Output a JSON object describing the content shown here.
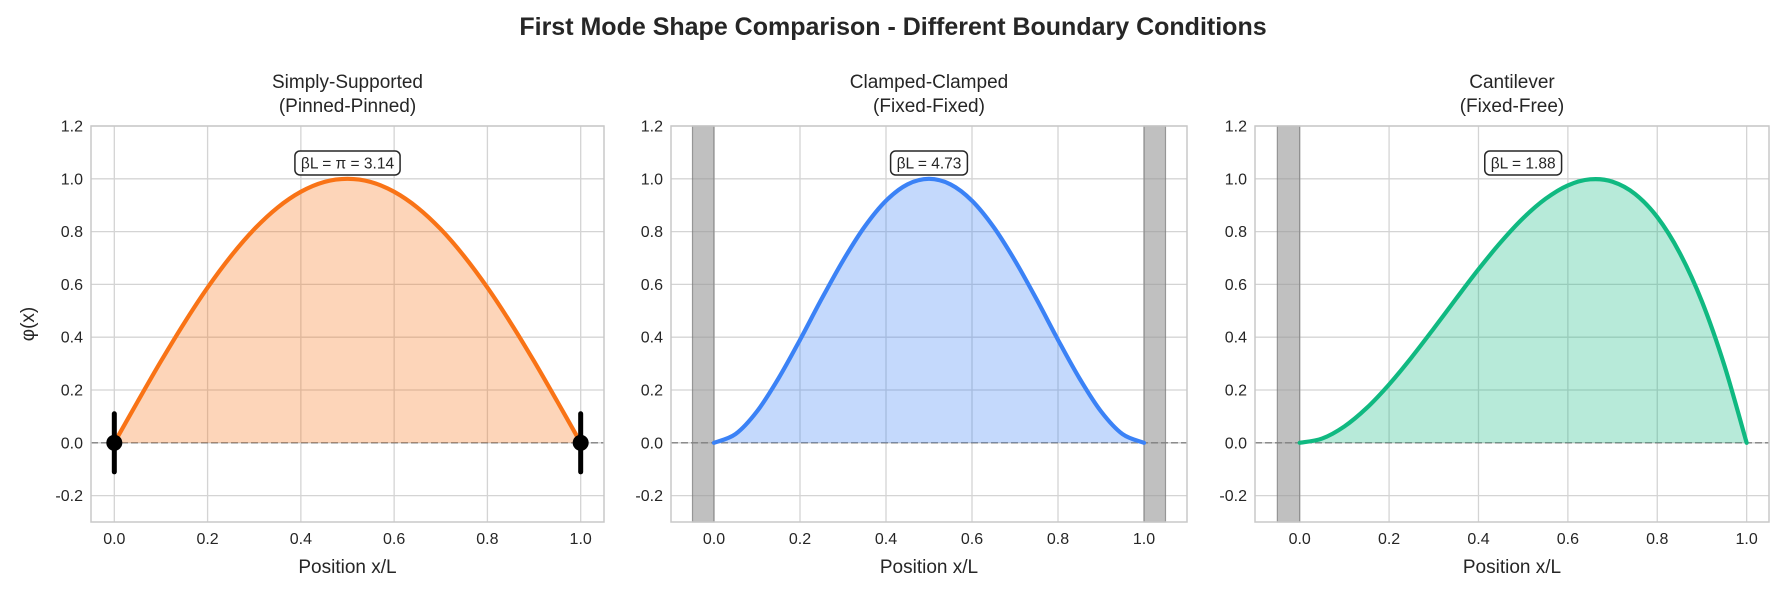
{
  "chart_data": {
    "title": "First Mode Shape Comparison - Different Boundary Conditions",
    "panels": [
      {
        "type": "area",
        "title_lines": [
          "Simply-Supported",
          "(Pinned-Pinned)"
        ],
        "xlabel": "Position x/L",
        "ylabel": "φ(x)",
        "xlim": [
          -0.05,
          1.05
        ],
        "ylim": [
          -0.3,
          1.2
        ],
        "xticks": [
          "0.0",
          "0.2",
          "0.4",
          "0.6",
          "0.8",
          "1.0"
        ],
        "yticks": [
          "-0.2",
          "0.0",
          "0.2",
          "0.4",
          "0.6",
          "0.8",
          "1.0",
          "1.2"
        ],
        "grid": true,
        "color": "#f97316",
        "annotation": "βL = π = 3.14",
        "supports": "pinned",
        "walls": [],
        "x": [
          0,
          0.05,
          0.1,
          0.15,
          0.2,
          0.25,
          0.3,
          0.35,
          0.4,
          0.45,
          0.5,
          0.55,
          0.6,
          0.65,
          0.7,
          0.75,
          0.8,
          0.85,
          0.9,
          0.95,
          1.0
        ],
        "y": [
          0,
          0.156,
          0.309,
          0.454,
          0.588,
          0.707,
          0.809,
          0.891,
          0.951,
          0.988,
          1.0,
          0.988,
          0.951,
          0.891,
          0.809,
          0.707,
          0.588,
          0.454,
          0.309,
          0.156,
          0
        ]
      },
      {
        "type": "area",
        "title_lines": [
          "Clamped-Clamped",
          "(Fixed-Fixed)"
        ],
        "xlabel": "Position x/L",
        "ylabel": "",
        "xlim": [
          -0.1,
          1.1
        ],
        "ylim": [
          -0.3,
          1.2
        ],
        "xticks": [
          "0.0",
          "0.2",
          "0.4",
          "0.6",
          "0.8",
          "1.0"
        ],
        "yticks": [
          "-0.2",
          "0.0",
          "0.2",
          "0.4",
          "0.6",
          "0.8",
          "1.0",
          "1.2"
        ],
        "grid": true,
        "color": "#3b82f6",
        "annotation": "βL = 4.73",
        "supports": "fixed",
        "walls": [
          [
            -0.05,
            0
          ],
          [
            1.0,
            1.05
          ]
        ],
        "x": [
          0,
          0.05,
          0.1,
          0.15,
          0.2,
          0.25,
          0.3,
          0.35,
          0.4,
          0.45,
          0.5,
          0.55,
          0.6,
          0.65,
          0.7,
          0.75,
          0.8,
          0.85,
          0.9,
          0.95,
          1.0
        ],
        "y": [
          0,
          0.033,
          0.119,
          0.244,
          0.39,
          0.544,
          0.69,
          0.818,
          0.917,
          0.979,
          1.0,
          0.979,
          0.917,
          0.818,
          0.69,
          0.544,
          0.39,
          0.244,
          0.119,
          0.033,
          0
        ]
      },
      {
        "type": "area",
        "title_lines": [
          "Cantilever",
          "(Fixed-Free)"
        ],
        "xlabel": "Position x/L",
        "ylabel": "",
        "xlim": [
          -0.1,
          1.05
        ],
        "ylim": [
          -0.3,
          1.2
        ],
        "xticks": [
          "0.0",
          "0.2",
          "0.4",
          "0.6",
          "0.8",
          "1.0"
        ],
        "yticks": [
          "-0.2",
          "0.0",
          "0.2",
          "0.4",
          "0.6",
          "0.8",
          "1.0",
          "1.2"
        ],
        "grid": true,
        "color": "#10b981",
        "annotation": "βL = 1.88",
        "supports": "fixed-free",
        "walls": [
          [
            -0.05,
            0
          ]
        ],
        "x": [
          0,
          0.05,
          0.1,
          0.15,
          0.2,
          0.25,
          0.3,
          0.35,
          0.4,
          0.45,
          0.5,
          0.55,
          0.6,
          0.65,
          0.7,
          0.75,
          0.8,
          0.85,
          0.9,
          0.95,
          1.0
        ],
        "y": [
          0,
          0.016,
          0.062,
          0.132,
          0.221,
          0.323,
          0.433,
          0.546,
          0.657,
          0.76,
          0.851,
          0.924,
          0.975,
          0.998,
          0.989,
          0.943,
          0.855,
          0.72,
          0.535,
          0.294,
          0
        ]
      }
    ]
  }
}
